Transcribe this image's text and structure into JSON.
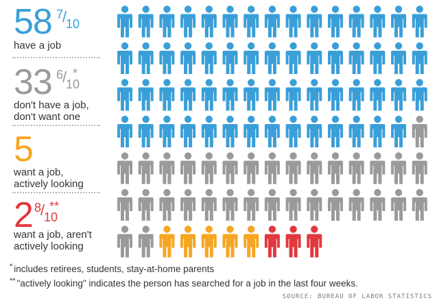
{
  "chart_data": {
    "type": "pictogram",
    "unit": "each figure = 1 person out of 100",
    "categories": [
      {
        "key": "have_job",
        "value": 58.7,
        "whole": "58",
        "frac_num": "7",
        "frac_den": "10",
        "mark": "",
        "label": [
          "have a job"
        ],
        "color": "#3a9fd8",
        "figures": 59
      },
      {
        "key": "no_job_no_want",
        "value": 33.6,
        "whole": "33",
        "frac_num": "6",
        "frac_den": "10",
        "mark": "*",
        "label": [
          "don't have a job,",
          "don't want one"
        ],
        "color": "#9a9a9a",
        "figures": 33
      },
      {
        "key": "want_looking",
        "value": 5,
        "whole": "5",
        "frac_num": "",
        "frac_den": "",
        "mark": "",
        "label": [
          "want a job,",
          "actively looking"
        ],
        "color": "#f5a623",
        "figures": 5
      },
      {
        "key": "want_not_looking",
        "value": 2.8,
        "whole": "2",
        "frac_num": "8",
        "frac_den": "10",
        "mark": "**",
        "label": [
          "want a job, aren't",
          "actively looking"
        ],
        "color": "#e0393e",
        "figures": 3
      }
    ]
  },
  "footnotes": [
    {
      "mark": "*",
      "text": "includes retirees, students, stay-at-home parents"
    },
    {
      "mark": "**",
      "text": "\"actively looking\" indicates the person has searched for a job in the last four weeks."
    }
  ],
  "source": "SOURCE: BUREAU OF LABOR STATISTICS"
}
